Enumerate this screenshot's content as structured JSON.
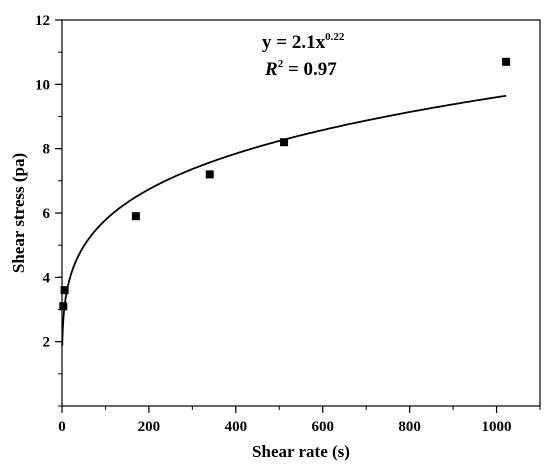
{
  "chart_data": {
    "type": "scatter",
    "xlabel": "Shear rate (s)",
    "ylabel": "Shear stress (pa)",
    "xlim": [
      0,
      1100
    ],
    "ylim": [
      0,
      12
    ],
    "x_ticks": [
      0,
      200,
      400,
      600,
      800,
      1000
    ],
    "y_ticks": [
      2,
      4,
      6,
      8,
      10,
      12
    ],
    "x_minor_step": 100,
    "y_minor_step": 1,
    "grid": false,
    "series": [
      {
        "marker": "square",
        "color": "#000000",
        "points": [
          {
            "x": 3,
            "y": 3.1
          },
          {
            "x": 6,
            "y": 3.6
          },
          {
            "x": 170,
            "y": 5.9
          },
          {
            "x": 340,
            "y": 7.2
          },
          {
            "x": 511,
            "y": 8.2
          },
          {
            "x": 1022,
            "y": 10.7
          }
        ]
      }
    ],
    "fit": {
      "a": 2.1,
      "b": 0.22,
      "x_start": 0.6,
      "x_end": 1022,
      "color": "#000000"
    },
    "annotations": {
      "equation_prefix": "y = 2.1x",
      "equation_exponent": "0.22",
      "r2_symbol": "R",
      "r2_exponent": "2",
      "r2_value": " = 0.97"
    }
  }
}
